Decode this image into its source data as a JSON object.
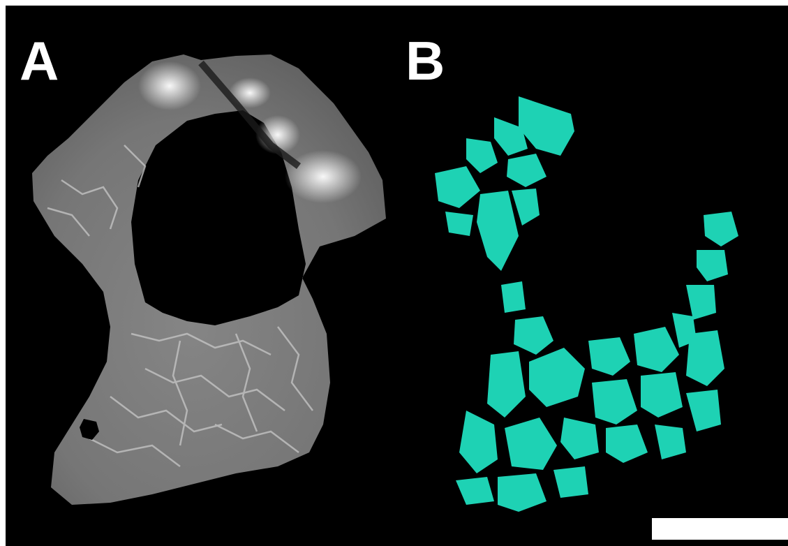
{
  "panels": [
    {
      "label": "A"
    },
    {
      "label": "B"
    }
  ],
  "colors": {
    "background": "#000000",
    "ct_bone": "#7d7d7d",
    "segmentation": "#1ed2b4",
    "scale_bar": "#ffffff"
  }
}
